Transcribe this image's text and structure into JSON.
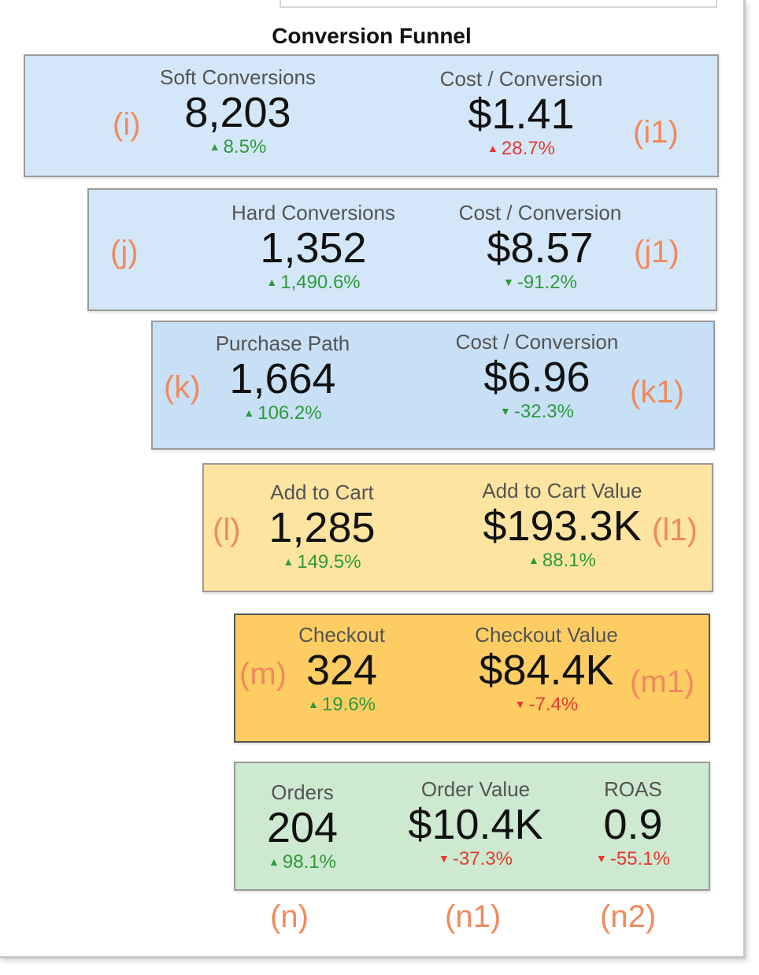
{
  "title": "Conversion Funnel",
  "colors": {
    "up": "#2e9a3c",
    "down": "#e53a2f",
    "annotation": "#f08a5d"
  },
  "rows": {
    "soft": {
      "note_left": "(i)",
      "note_right": "(i1)",
      "m1": {
        "label": "Soft Conversions",
        "value": "8,203",
        "change": "8.5%",
        "direction": "up"
      },
      "m2": {
        "label": "Cost / Conversion",
        "value": "$1.41",
        "change": "28.7%",
        "direction": "up-bad"
      }
    },
    "hard": {
      "note_left": "(j)",
      "note_right": "(j1)",
      "m1": {
        "label": "Hard Conversions",
        "value": "1,352",
        "change": "1,490.6%",
        "direction": "up"
      },
      "m2": {
        "label": "Cost / Conversion",
        "value": "$8.57",
        "change": "-91.2%",
        "direction": "down-good"
      }
    },
    "purchase": {
      "note_left": "(k)",
      "note_right": "(k1)",
      "m1": {
        "label": "Purchase Path",
        "value": "1,664",
        "change": "106.2%",
        "direction": "up"
      },
      "m2": {
        "label": "Cost / Conversion",
        "value": "$6.96",
        "change": "-32.3%",
        "direction": "down-good"
      }
    },
    "cart": {
      "note_left": "(l)",
      "note_right": "(l1)",
      "m1": {
        "label": "Add to Cart",
        "value": "1,285",
        "change": "149.5%",
        "direction": "up"
      },
      "m2": {
        "label": "Add to Cart Value",
        "value": "$193.3K",
        "change": "88.1%",
        "direction": "up"
      }
    },
    "checkout": {
      "note_left": "(m)",
      "note_right": "(m1)",
      "m1": {
        "label": "Checkout",
        "value": "324",
        "change": "19.6%",
        "direction": "up"
      },
      "m2": {
        "label": "Checkout Value",
        "value": "$84.4K",
        "change": "-7.4%",
        "direction": "down"
      }
    },
    "orders": {
      "note_1": "(n)",
      "note_2": "(n1)",
      "note_3": "(n2)",
      "m1": {
        "label": "Orders",
        "value": "204",
        "change": "98.1%",
        "direction": "up"
      },
      "m2": {
        "label": "Order Value",
        "value": "$10.4K",
        "change": "-37.3%",
        "direction": "down"
      },
      "m3": {
        "label": "ROAS",
        "value": "0.9",
        "change": "-55.1%",
        "direction": "down"
      }
    }
  }
}
